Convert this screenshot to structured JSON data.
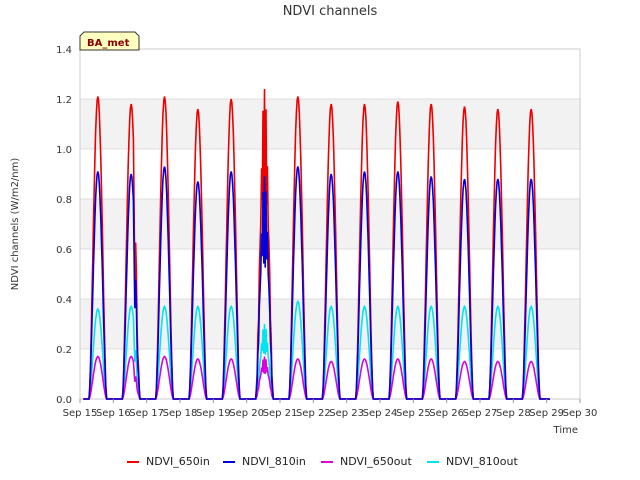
{
  "chart_data": {
    "type": "line",
    "title": "NDVI channels",
    "xlabel": "Time",
    "ylabel": "NDVI channels (W/m2/nm)",
    "ylim": [
      0,
      1.4
    ],
    "y_ticks": [
      "0.0",
      "0.2",
      "0.4",
      "0.6",
      "0.8",
      "1.0",
      "1.2",
      "1.4"
    ],
    "x_range_days": [
      15,
      30
    ],
    "x_ticks": [
      "Sep 15",
      "Sep 16",
      "Sep 17",
      "Sep 18",
      "Sep 19",
      "Sep 20",
      "Sep 21",
      "Sep 22",
      "Sep 23",
      "Sep 24",
      "Sep 25",
      "Sep 26",
      "Sep 27",
      "Sep 28",
      "Sep 29",
      "Sep 30"
    ],
    "site_badge": "BA_met",
    "grid": "horizontal bands",
    "legend_position": "bottom",
    "series": [
      {
        "name": "NDVI_650in",
        "color": "#ee0000",
        "daily_peaks": [
          1.21,
          1.18,
          1.21,
          1.16,
          1.2,
          1.24,
          1.21,
          1.18,
          1.18,
          1.19,
          1.18,
          1.17,
          1.16,
          1.16
        ]
      },
      {
        "name": "NDVI_810in",
        "color": "#0000dd",
        "daily_peaks": [
          0.91,
          0.9,
          0.93,
          0.87,
          0.91,
          0.89,
          0.93,
          0.9,
          0.91,
          0.91,
          0.89,
          0.88,
          0.88,
          0.88
        ]
      },
      {
        "name": "NDVI_650out",
        "color": "#dd00dd",
        "daily_peaks": [
          0.17,
          0.17,
          0.17,
          0.16,
          0.16,
          0.17,
          0.16,
          0.15,
          0.16,
          0.16,
          0.16,
          0.15,
          0.15,
          0.15
        ]
      },
      {
        "name": "NDVI_810out",
        "color": "#00e5ee",
        "daily_peaks": [
          0.36,
          0.37,
          0.37,
          0.37,
          0.37,
          0.3,
          0.39,
          0.37,
          0.37,
          0.37,
          0.37,
          0.37,
          0.37,
          0.37
        ]
      }
    ]
  }
}
